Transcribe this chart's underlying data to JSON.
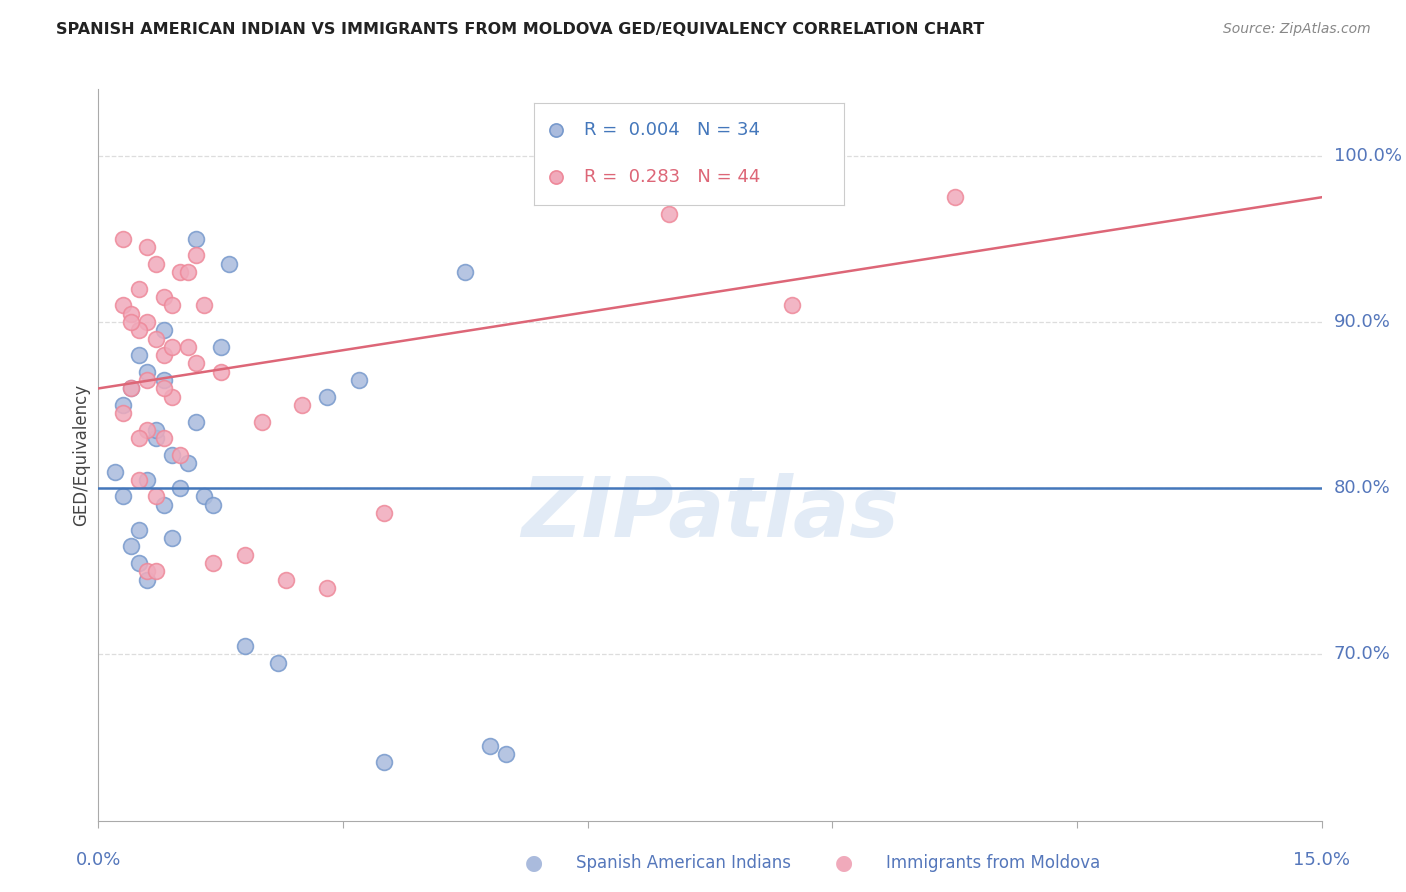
{
  "title": "SPANISH AMERICAN INDIAN VS IMMIGRANTS FROM MOLDOVA GED/EQUIVALENCY CORRELATION CHART",
  "source": "Source: ZipAtlas.com",
  "ylabel": "GED/Equivalency",
  "xmin": 0.0,
  "xmax": 15.0,
  "ymin": 60.0,
  "ymax": 104.0,
  "yticks": [
    70.0,
    80.0,
    90.0,
    100.0
  ],
  "blue_R": "0.004",
  "blue_N": "34",
  "pink_R": "0.283",
  "pink_N": "44",
  "blue_label": "Spanish American Indians",
  "pink_label": "Immigrants from Moldova",
  "blue_scatter_x": [
    0.5,
    0.8,
    1.2,
    0.3,
    0.6,
    1.5,
    0.4,
    0.7,
    0.9,
    1.1,
    0.2,
    0.6,
    1.0,
    0.3,
    0.8,
    1.3,
    0.5,
    0.9,
    1.6,
    0.4,
    1.8,
    2.2,
    4.5,
    0.7,
    1.2,
    0.5,
    0.6,
    1.4,
    0.8,
    2.8,
    5.0,
    3.5,
    4.8,
    3.2
  ],
  "blue_scatter_y": [
    88.0,
    89.5,
    95.0,
    85.0,
    87.0,
    88.5,
    86.0,
    83.0,
    82.0,
    81.5,
    81.0,
    80.5,
    80.0,
    79.5,
    79.0,
    79.5,
    77.5,
    77.0,
    93.5,
    76.5,
    70.5,
    69.5,
    93.0,
    83.5,
    84.0,
    75.5,
    74.5,
    79.0,
    86.5,
    85.5,
    64.0,
    63.5,
    64.5,
    86.5
  ],
  "pink_scatter_x": [
    0.3,
    0.5,
    0.7,
    0.4,
    0.8,
    0.6,
    1.0,
    0.9,
    1.2,
    0.5,
    0.7,
    1.1,
    1.3,
    0.8,
    0.6,
    1.5,
    0.4,
    0.9,
    2.0,
    2.5,
    0.3,
    0.6,
    0.8,
    1.0,
    0.5,
    0.7,
    1.4,
    0.6,
    1.8,
    2.3,
    2.8,
    3.5,
    7.0,
    8.5,
    10.5,
    0.4,
    0.9,
    1.2,
    0.6,
    1.1,
    0.8,
    0.5,
    0.7,
    0.3
  ],
  "pink_scatter_y": [
    91.0,
    92.0,
    93.5,
    90.5,
    91.5,
    90.0,
    93.0,
    91.0,
    94.0,
    89.5,
    89.0,
    88.5,
    91.0,
    88.0,
    86.5,
    87.0,
    86.0,
    85.5,
    84.0,
    85.0,
    84.5,
    83.5,
    83.0,
    82.0,
    80.5,
    79.5,
    75.5,
    75.0,
    76.0,
    74.5,
    74.0,
    78.5,
    96.5,
    91.0,
    97.5,
    90.0,
    88.5,
    87.5,
    94.5,
    93.0,
    86.0,
    83.0,
    75.0,
    95.0
  ],
  "blue_line_x": [
    0.0,
    15.0
  ],
  "blue_line_y": [
    80.0,
    80.0
  ],
  "pink_line_x": [
    0.0,
    15.0
  ],
  "pink_line_y": [
    86.0,
    97.5
  ],
  "background_color": "#ffffff",
  "blue_color": "#aabbdd",
  "pink_color": "#f0aabb",
  "blue_edge_color": "#7799cc",
  "pink_edge_color": "#ee8899",
  "blue_line_color": "#4477bb",
  "pink_line_color": "#dd6677",
  "axis_label_color": "#5577bb",
  "watermark": "ZIPatlas",
  "grid_color": "#dddddd"
}
